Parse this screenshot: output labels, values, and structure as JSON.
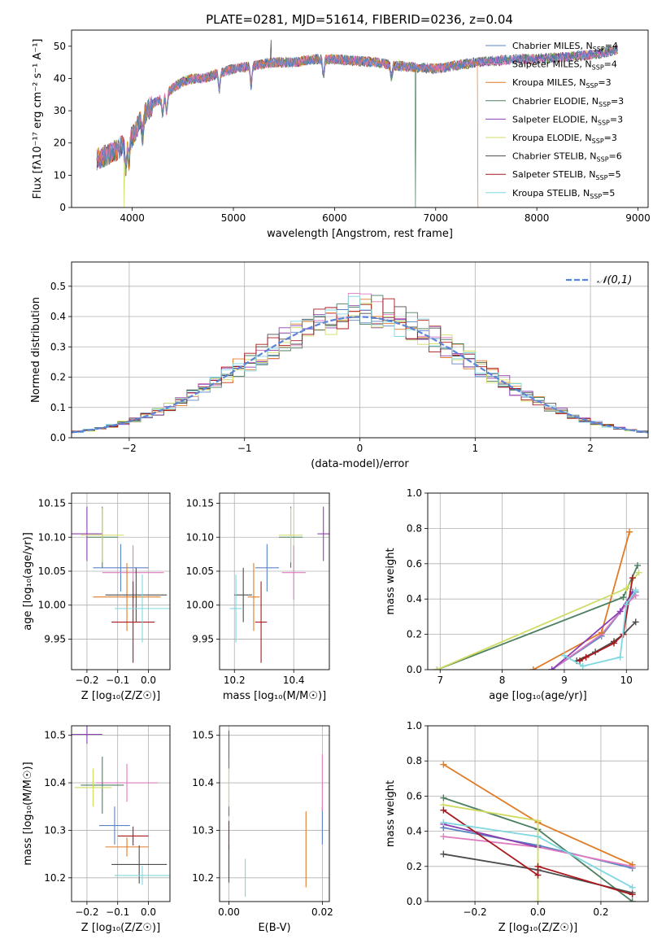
{
  "figure_title": "PLATE=0281, MJD=51614, FIBERID=0236, z=0.04",
  "colors": {
    "Chabrier MILES": "#5b84c4",
    "Salpeter MILES": "#df7bbf",
    "Kroupa MILES": "#e07b26",
    "Chabrier ELODIE": "#4d7f61",
    "Salpeter ELODIE": "#8c3fb0",
    "Kroupa ELODIE": "#cfdc62",
    "Chabrier STELIB": "#4d4d4d",
    "Salpeter STELIB": "#a8191d",
    "Kroupa STELIB": "#7fd7e0",
    "normal": "#5b84d6"
  },
  "chart_data": [
    {
      "id": "spectrum",
      "type": "line",
      "title": "PLATE=0281, MJD=51614, FIBERID=0236, z=0.04",
      "xlabel": "wavelength [Angstrom, rest frame]",
      "ylabel": "Flux [fλ10⁻¹⁷ erg cm⁻² s⁻¹ A⁻¹]",
      "xlim": [
        3400,
        9100
      ],
      "ylim": [
        0,
        55
      ],
      "xticks": [
        4000,
        5000,
        6000,
        7000,
        8000,
        9000
      ],
      "yticks": [
        0,
        10,
        20,
        30,
        40,
        50
      ],
      "legend_position": "top-right",
      "legend": [
        "Chabrier MILES, N_SSP=4",
        "Salpeter MILES, N_SSP=4",
        "Kroupa MILES, N_SSP=3",
        "Chabrier ELODIE, N_SSP=3",
        "Salpeter ELODIE, N_SSP=3",
        "Kroupa ELODIE, N_SSP=3",
        "Chabrier STELIB, N_SSP=6",
        "Salpeter STELIB, N_SSP=5",
        "Kroupa STELIB, N_SSP=5"
      ],
      "continuum": [
        [
          3650,
          15
        ],
        [
          3800,
          17
        ],
        [
          3900,
          19
        ],
        [
          4000,
          22
        ],
        [
          4100,
          28
        ],
        [
          4200,
          32
        ],
        [
          4300,
          34
        ],
        [
          4400,
          37
        ],
        [
          4500,
          39
        ],
        [
          4600,
          40
        ],
        [
          4700,
          40
        ],
        [
          4800,
          41
        ],
        [
          4900,
          42
        ],
        [
          5000,
          43
        ],
        [
          5200,
          44
        ],
        [
          5400,
          45
        ],
        [
          5600,
          45
        ],
        [
          5800,
          46
        ],
        [
          6000,
          46
        ],
        [
          6200,
          45.5
        ],
        [
          6400,
          45
        ],
        [
          6600,
          44
        ],
        [
          6800,
          43.5
        ],
        [
          7000,
          43
        ],
        [
          7200,
          44
        ],
        [
          7400,
          45
        ],
        [
          7600,
          45.5
        ],
        [
          7800,
          46
        ],
        [
          8000,
          46
        ],
        [
          8200,
          46.5
        ],
        [
          8400,
          47
        ],
        [
          8600,
          47.5
        ],
        [
          8800,
          49
        ]
      ],
      "dips": [
        [
          3934,
          8
        ],
        [
          3968,
          7
        ],
        [
          4102,
          6
        ],
        [
          4300,
          5
        ],
        [
          4340,
          5
        ],
        [
          4861,
          5
        ],
        [
          5175,
          6
        ],
        [
          5890,
          5
        ],
        [
          6563,
          4
        ]
      ],
      "spikes": [
        [
          5370,
          52
        ],
        [
          6800,
          0
        ],
        [
          7420,
          0
        ],
        [
          3920,
          0
        ]
      ]
    },
    {
      "id": "residuals",
      "type": "bar",
      "xlabel": "(data-model)/error",
      "ylabel": "Normed distribution",
      "xlim": [
        -2.5,
        2.5
      ],
      "ylim": [
        0,
        0.58
      ],
      "xticks": [
        -2,
        -1,
        0,
        1,
        2
      ],
      "yticks": [
        0.0,
        0.1,
        0.2,
        0.3,
        0.4,
        0.5
      ],
      "legend": [
        "𝒩(0,1)"
      ],
      "legend_position": "top-right",
      "normal": {
        "mu": 0,
        "sigma": 1
      },
      "bin_width": 0.1
    },
    {
      "id": "age_vs_Z",
      "type": "scatter",
      "xlabel": "Z [log₁₀(Z/Z☉)]",
      "ylabel": "age  [log₁₀(age/yr)]",
      "xlim": [
        -0.25,
        0.07
      ],
      "ylim": [
        9.905,
        10.165
      ],
      "xticks": [
        -0.2,
        -0.1,
        0.0
      ],
      "yticks": [
        9.95,
        10.0,
        10.05,
        10.1,
        10.15
      ],
      "points": [
        {
          "model": "Chabrier MILES",
          "x": -0.09,
          "xerr": 0.09,
          "y": 10.055,
          "yerr": 0.035
        },
        {
          "model": "Salpeter MILES",
          "x": -0.05,
          "xerr": 0.1,
          "y": 10.048,
          "yerr": 0.04
        },
        {
          "model": "Kroupa MILES",
          "x": -0.07,
          "xerr": 0.11,
          "y": 10.012,
          "yerr": 0.05
        },
        {
          "model": "Chabrier ELODIE",
          "x": -0.15,
          "xerr": 0.05,
          "y": 10.1,
          "yerr": 0.045
        },
        {
          "model": "Salpeter ELODIE",
          "x": -0.2,
          "xerr": 0.05,
          "y": 10.105,
          "yerr": 0.04
        },
        {
          "model": "Kroupa ELODIE",
          "x": -0.15,
          "xerr": 0.07,
          "y": 10.103,
          "yerr": 0.04
        },
        {
          "model": "Chabrier STELIB",
          "x": -0.04,
          "xerr": 0.1,
          "y": 10.015,
          "yerr": 0.04
        },
        {
          "model": "Salpeter STELIB",
          "x": -0.05,
          "xerr": 0.07,
          "y": 9.975,
          "yerr": 0.06
        },
        {
          "model": "Kroupa STELIB",
          "x": -0.02,
          "xerr": 0.09,
          "y": 9.995,
          "yerr": 0.05
        }
      ]
    },
    {
      "id": "age_vs_mass",
      "type": "scatter",
      "xlabel": "mass [log₁₀(M/M☉)]",
      "ylabel": "",
      "xlim": [
        10.15,
        10.52
      ],
      "ylim": [
        9.905,
        10.165
      ],
      "xticks": [
        10.2,
        10.4
      ],
      "yticks": [
        9.95,
        10.0,
        10.05,
        10.1,
        10.15
      ],
      "points": [
        {
          "model": "Chabrier MILES",
          "x": 10.31,
          "xerr": 0.04,
          "y": 10.055,
          "yerr": 0.035
        },
        {
          "model": "Salpeter MILES",
          "x": 10.4,
          "xerr": 0.04,
          "y": 10.048,
          "yerr": 0.04
        },
        {
          "model": "Kroupa MILES",
          "x": 10.265,
          "xerr": 0.02,
          "y": 10.012,
          "yerr": 0.05
        },
        {
          "model": "Chabrier ELODIE",
          "x": 10.39,
          "xerr": 0.04,
          "y": 10.1,
          "yerr": 0.045
        },
        {
          "model": "Salpeter ELODIE",
          "x": 10.5,
          "xerr": 0.02,
          "y": 10.105,
          "yerr": 0.04
        },
        {
          "model": "Kroupa ELODIE",
          "x": 10.39,
          "xerr": 0.04,
          "y": 10.103,
          "yerr": 0.04
        },
        {
          "model": "Chabrier STELIB",
          "x": 10.23,
          "xerr": 0.03,
          "y": 10.015,
          "yerr": 0.04
        },
        {
          "model": "Salpeter STELIB",
          "x": 10.29,
          "xerr": 0.02,
          "y": 9.975,
          "yerr": 0.06
        },
        {
          "model": "Kroupa STELIB",
          "x": 10.205,
          "xerr": 0.02,
          "y": 9.995,
          "yerr": 0.05
        }
      ]
    },
    {
      "id": "weight_vs_age",
      "type": "line",
      "xlabel": "age  [log₁₀(age/yr)]",
      "ylabel": "mass weight",
      "xlim": [
        6.8,
        10.35
      ],
      "ylim": [
        0,
        1
      ],
      "xticks": [
        7,
        8,
        9,
        10
      ],
      "yticks": [
        0.0,
        0.2,
        0.4,
        0.6,
        0.8,
        1.0
      ],
      "series": [
        {
          "name": "Chabrier MILES",
          "x": [
            8.8,
            9.6,
            10.0,
            10.15
          ],
          "y": [
            0.0,
            0.19,
            0.37,
            0.44
          ]
        },
        {
          "name": "Salpeter MILES",
          "x": [
            8.8,
            9.6,
            10.0,
            10.15
          ],
          "y": [
            0.0,
            0.2,
            0.37,
            0.42
          ]
        },
        {
          "name": "Kroupa MILES",
          "x": [
            8.5,
            9.6,
            10.05
          ],
          "y": [
            0.0,
            0.21,
            0.78
          ]
        },
        {
          "name": "Chabrier ELODIE",
          "x": [
            6.95,
            9.95,
            10.18
          ],
          "y": [
            0.0,
            0.41,
            0.59
          ]
        },
        {
          "name": "Salpeter ELODIE",
          "x": [
            8.8,
            9.9,
            10.1
          ],
          "y": [
            0.0,
            0.33,
            0.44
          ]
        },
        {
          "name": "Kroupa ELODIE",
          "x": [
            6.95,
            10.0,
            10.2
          ],
          "y": [
            0.0,
            0.46,
            0.55
          ]
        },
        {
          "name": "Chabrier STELIB",
          "x": [
            9.2,
            9.5,
            9.8,
            9.95,
            10.15
          ],
          "y": [
            0.05,
            0.1,
            0.16,
            0.2,
            0.27
          ]
        },
        {
          "name": "Salpeter STELIB",
          "x": [
            9.25,
            9.35,
            9.8,
            9.95,
            10.1
          ],
          "y": [
            0.05,
            0.07,
            0.15,
            0.2,
            0.52
          ]
        },
        {
          "name": "Kroupa STELIB",
          "x": [
            9.0,
            9.3,
            9.9,
            10.0,
            10.15
          ],
          "y": [
            0.08,
            0.02,
            0.07,
            0.37,
            0.45
          ]
        }
      ]
    },
    {
      "id": "mass_vs_Z",
      "type": "scatter",
      "xlabel": "Z [log₁₀(Z/Z☉)]",
      "ylabel": "mass [log₁₀(M/M☉)]",
      "xlim": [
        -0.25,
        0.07
      ],
      "ylim": [
        10.15,
        10.52
      ],
      "xticks": [
        -0.2,
        -0.1,
        0.0
      ],
      "yticks": [
        10.2,
        10.3,
        10.4,
        10.5
      ],
      "points": [
        {
          "model": "Chabrier MILES",
          "x": -0.11,
          "xerr": 0.05,
          "y": 10.31,
          "yerr": 0.04
        },
        {
          "model": "Salpeter MILES",
          "x": -0.07,
          "xerr": 0.1,
          "y": 10.4,
          "yerr": 0.04
        },
        {
          "model": "Kroupa MILES",
          "x": -0.07,
          "xerr": 0.07,
          "y": 10.265,
          "yerr": 0.02
        },
        {
          "model": "Chabrier ELODIE",
          "x": -0.15,
          "xerr": 0.07,
          "y": 10.395,
          "yerr": 0.06
        },
        {
          "model": "Salpeter ELODIE",
          "x": -0.2,
          "xerr": 0.05,
          "y": 10.502,
          "yerr": 0.02
        },
        {
          "model": "Kroupa ELODIE",
          "x": -0.18,
          "xerr": 0.06,
          "y": 10.39,
          "yerr": 0.04
        },
        {
          "model": "Chabrier STELIB",
          "x": -0.03,
          "xerr": 0.09,
          "y": 10.228,
          "yerr": 0.04
        },
        {
          "model": "Salpeter STELIB",
          "x": -0.05,
          "xerr": 0.05,
          "y": 10.288,
          "yerr": 0.02
        },
        {
          "model": "Kroupa STELIB",
          "x": -0.02,
          "xerr": 0.09,
          "y": 10.205,
          "yerr": 0.02
        }
      ]
    },
    {
      "id": "mass_vs_ebv",
      "type": "scatter",
      "xlabel": "E(B-V)",
      "ylabel": "",
      "xlim": [
        -0.002,
        0.0215
      ],
      "ylim": [
        10.15,
        10.52
      ],
      "xticks": [
        0.0,
        0.02
      ],
      "yticks": [
        10.2,
        10.3,
        10.4,
        10.5
      ],
      "points": [
        {
          "model": "Chabrier MILES",
          "x": 0.02,
          "y": 10.31,
          "yerr": 0.04
        },
        {
          "model": "Salpeter MILES",
          "x": 0.02,
          "y": 10.4,
          "yerr": 0.06
        },
        {
          "model": "Kroupa MILES",
          "x": 0.0165,
          "y": 10.26,
          "yerr": 0.08
        },
        {
          "model": "Chabrier ELODIE",
          "x": 0.0,
          "y": 10.39,
          "yerr": 0.06
        },
        {
          "model": "Salpeter ELODIE",
          "x": 0.0,
          "y": 10.48,
          "yerr": 0.03
        },
        {
          "model": "Kroupa ELODIE",
          "x": 0.0,
          "y": 10.39,
          "yerr": 0.04
        },
        {
          "model": "Chabrier STELIB",
          "x": 0.0,
          "y": 10.23,
          "yerr": 0.04
        },
        {
          "model": "Salpeter STELIB",
          "x": 0.0,
          "y": 10.29,
          "yerr": 0.03
        },
        {
          "model": "Kroupa STELIB",
          "x": 0.0035,
          "y": 10.2,
          "yerr": 0.04
        }
      ]
    },
    {
      "id": "weight_vs_Z",
      "type": "line",
      "xlabel": "Z [log₁₀(Z/Z☉)]",
      "ylabel": "mass weight",
      "xlim": [
        -0.35,
        0.35
      ],
      "ylim": [
        0,
        1
      ],
      "xticks": [
        -0.2,
        0.0,
        0.2
      ],
      "yticks": [
        0.0,
        0.2,
        0.4,
        0.6,
        0.8,
        1.0
      ],
      "series": [
        {
          "name": "Chabrier MILES",
          "x": [
            -0.3,
            0.0,
            0.3
          ],
          "y": [
            0.42,
            0.32,
            0.19
          ]
        },
        {
          "name": "Salpeter MILES",
          "x": [
            -0.3,
            0.0,
            0.3
          ],
          "y": [
            0.37,
            0.31,
            0.2
          ]
        },
        {
          "name": "Kroupa MILES",
          "x": [
            -0.3,
            0.0,
            0.3
          ],
          "y": [
            0.78,
            0.45,
            0.21
          ]
        },
        {
          "name": "Chabrier ELODIE",
          "x": [
            -0.3,
            0.0,
            0.3
          ],
          "y": [
            0.59,
            0.41,
            0.0
          ]
        },
        {
          "name": "Salpeter ELODIE",
          "x": [
            -0.3,
            0.0
          ],
          "y": [
            0.44,
            0.31
          ]
        },
        {
          "name": "Kroupa ELODIE",
          "x": [
            -0.3,
            0.0,
            0.0
          ],
          "y": [
            0.55,
            0.46,
            0.0
          ]
        },
        {
          "name": "Chabrier STELIB",
          "x": [
            -0.3,
            0.0,
            0.3
          ],
          "y": [
            0.27,
            0.18,
            0.05
          ]
        },
        {
          "name": "Salpeter STELIB",
          "x": [
            -0.3,
            0.0,
            0.0,
            0.3
          ],
          "y": [
            0.52,
            0.15,
            0.2,
            0.04
          ]
        },
        {
          "name": "Kroupa STELIB",
          "x": [
            -0.3,
            0.0,
            0.3
          ],
          "y": [
            0.45,
            0.37,
            0.08
          ]
        }
      ]
    }
  ]
}
